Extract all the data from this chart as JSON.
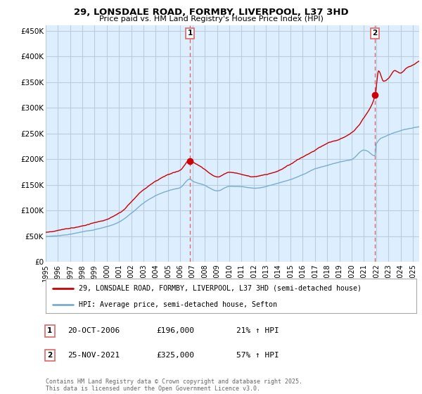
{
  "title1": "29, LONSDALE ROAD, FORMBY, LIVERPOOL, L37 3HD",
  "title2": "Price paid vs. HM Land Registry's House Price Index (HPI)",
  "ylabel_ticks": [
    "£0",
    "£50K",
    "£100K",
    "£150K",
    "£200K",
    "£250K",
    "£300K",
    "£350K",
    "£400K",
    "£450K"
  ],
  "ytick_values": [
    0,
    50000,
    100000,
    150000,
    200000,
    250000,
    300000,
    350000,
    400000,
    450000
  ],
  "ylim": [
    0,
    460000
  ],
  "xlim_start": 1995.0,
  "xlim_end": 2025.5,
  "sale1_x": 2006.8,
  "sale1_y": 196000,
  "sale1_label": "1",
  "sale2_x": 2021.9,
  "sale2_y": 325000,
  "sale2_label": "2",
  "vline1_x": 2006.8,
  "vline2_x": 2021.9,
  "red_line_color": "#cc0000",
  "blue_line_color": "#7aadcf",
  "plot_bg_color": "#ddeeff",
  "vline_color": "#dd6666",
  "legend_line1": "29, LONSDALE ROAD, FORMBY, LIVERPOOL, L37 3HD (semi-detached house)",
  "legend_line2": "HPI: Average price, semi-detached house, Sefton",
  "annotation1_date": "20-OCT-2006",
  "annotation1_price": "£196,000",
  "annotation1_hpi": "21% ↑ HPI",
  "annotation2_date": "25-NOV-2021",
  "annotation2_price": "£325,000",
  "annotation2_hpi": "57% ↑ HPI",
  "footer": "Contains HM Land Registry data © Crown copyright and database right 2025.\nThis data is licensed under the Open Government Licence v3.0.",
  "bg_color": "#ffffff",
  "grid_color": "#bbccdd",
  "xtick_years": [
    1995,
    1996,
    1997,
    1998,
    1999,
    2000,
    2001,
    2002,
    2003,
    2004,
    2005,
    2006,
    2007,
    2008,
    2009,
    2010,
    2011,
    2012,
    2013,
    2014,
    2015,
    2016,
    2017,
    2018,
    2019,
    2020,
    2021,
    2022,
    2023,
    2024,
    2025
  ]
}
